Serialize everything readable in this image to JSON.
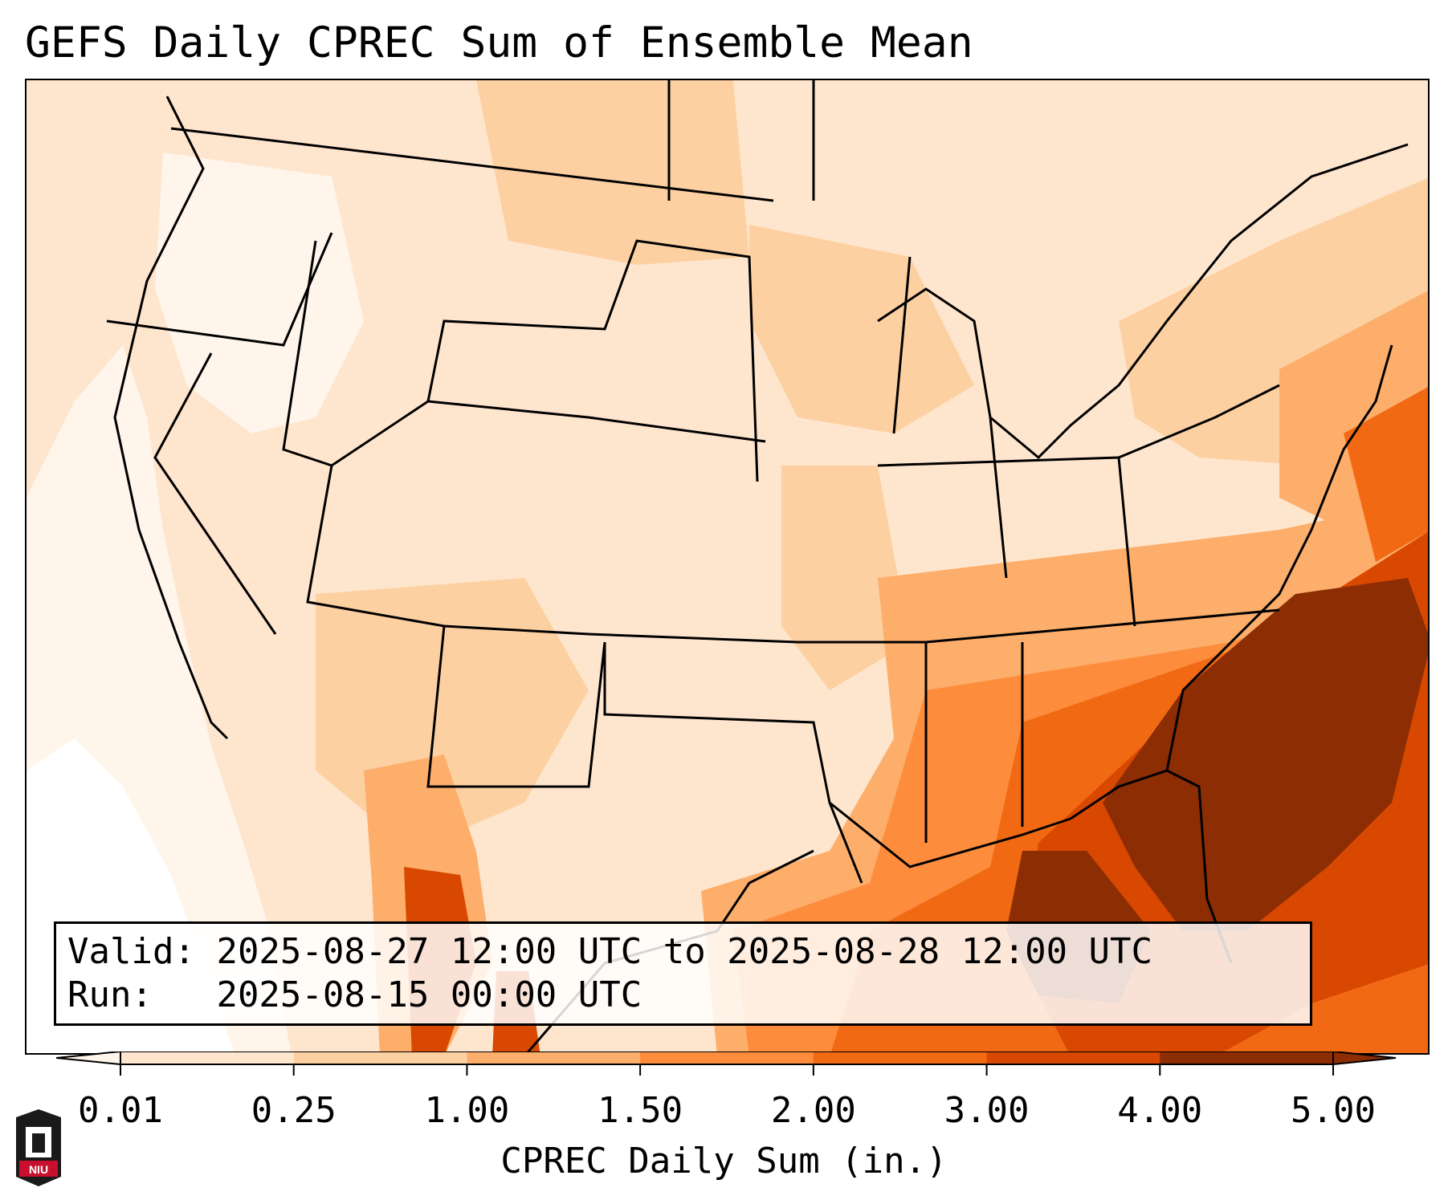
{
  "title": "GEFS Daily CPREC Sum of Ensemble Mean",
  "info": {
    "valid_label": "Valid:",
    "valid_value": "2025-08-27 12:00 UTC to 2025-08-28 12:00 UTC",
    "run_label": "Run:",
    "run_value": "2025-08-15 00:00 UTC"
  },
  "colorbar": {
    "label": "CPREC Daily Sum (in.)",
    "ticks": [
      "0.01",
      "0.25",
      "1.00",
      "1.50",
      "2.00",
      "3.00",
      "4.00",
      "5.00"
    ],
    "colors": [
      "#fff5eb",
      "#fee6ce",
      "#fdd0a2",
      "#fdae6b",
      "#fd8d3c",
      "#f16913",
      "#d94801",
      "#8c2d04"
    ],
    "extend": "both"
  },
  "logo": {
    "text": "NIU"
  },
  "colors": {
    "level_0": "#fff5eb",
    "level_1": "#fee6ce",
    "level_2": "#fdd0a2",
    "level_3": "#fdae6b",
    "level_4": "#fd8d3c",
    "level_5": "#f16913",
    "level_6": "#d94801",
    "level_7": "#8c2d04",
    "logo_red": "#c8102e"
  }
}
